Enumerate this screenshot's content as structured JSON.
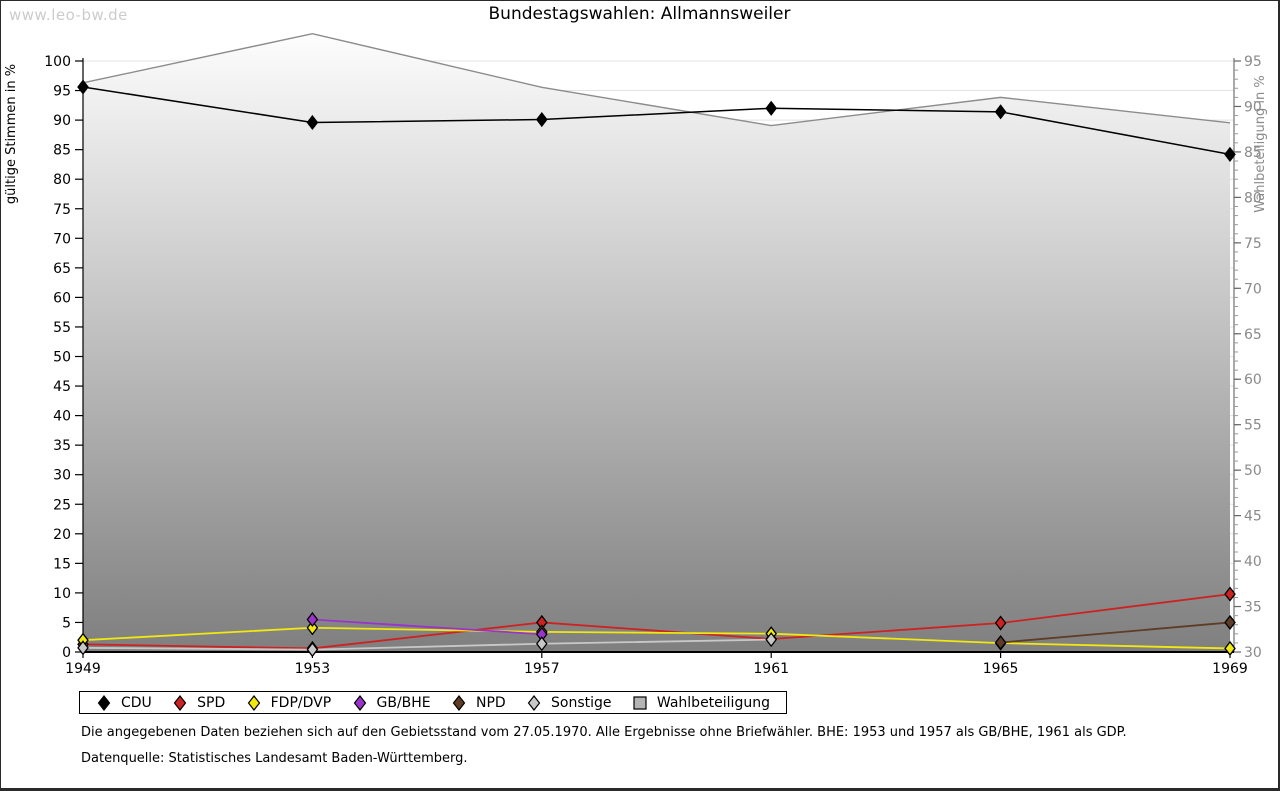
{
  "watermark": "www.leo-bw.de",
  "title": "Bundestagswahlen: Allmannsweiler",
  "footnotes": {
    "line1": "Die angegebenen Daten beziehen sich auf den Gebietsstand vom 27.05.1970. Alle Ergebnisse ohne Briefwähler. BHE: 1953 und 1957 als GB/BHE, 1961 als GDP.",
    "line2": "Datenquelle: Statistisches Landesamt Baden-Württemberg."
  },
  "chart_data": {
    "type": "line",
    "title": "Bundestagswahlen: Allmannsweiler",
    "categories": [
      "1949",
      "1953",
      "1957",
      "1961",
      "1965",
      "1969"
    ],
    "left_axis": {
      "label": "gültige Stimmen in %",
      "min": 0,
      "max": 100,
      "tick_step": 5
    },
    "right_axis": {
      "label": "Wahlbeteiligung in %",
      "min": 30,
      "max": 95,
      "tick_step": 5,
      "minor_tick_step": 1
    },
    "grid": true,
    "legend_position": "bottom",
    "series": [
      {
        "name": "CDU",
        "axis": "left",
        "marker": "diamond",
        "color": "#000000",
        "values": [
          95.6,
          89.6,
          90.1,
          92.0,
          91.4,
          84.2
        ]
      },
      {
        "name": "SPD",
        "axis": "left",
        "marker": "diamond",
        "color": "#cc2222",
        "values": [
          1.3,
          0.6,
          5.0,
          2.2,
          4.9,
          9.8
        ]
      },
      {
        "name": "FDP/DVP",
        "axis": "left",
        "marker": "diamond",
        "color": "#f0e80e",
        "values": [
          2.0,
          4.1,
          3.4,
          3.1,
          1.5,
          0.6
        ]
      },
      {
        "name": "GB/BHE",
        "axis": "left",
        "marker": "diamond",
        "color": "#9933cc",
        "values": [
          null,
          5.5,
          3.0,
          null,
          null,
          null
        ]
      },
      {
        "name": "NPD",
        "axis": "left",
        "marker": "diamond",
        "color": "#5e3c26",
        "values": [
          null,
          null,
          null,
          null,
          1.6,
          5.0
        ]
      },
      {
        "name": "Sonstige",
        "axis": "left",
        "marker": "diamond",
        "color": "#c8c8c8",
        "values": [
          0.7,
          0.4,
          1.4,
          2.1,
          null,
          null
        ]
      },
      {
        "name": "Wahlbeteiligung",
        "axis": "right",
        "marker": "square",
        "type": "area",
        "color": "#8c8c8c",
        "area_fill_top": "#fdfdfd",
        "area_fill_bottom": "#7f7f7f",
        "values": [
          92.6,
          98.0,
          92.1,
          87.9,
          91.0,
          88.2
        ]
      }
    ]
  }
}
